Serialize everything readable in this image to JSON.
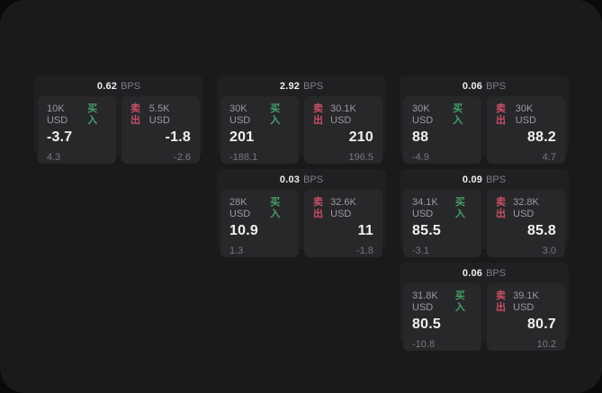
{
  "labels": {
    "bps_unit": "BPS",
    "buy": "买入",
    "sell": "卖出"
  },
  "colors": {
    "page_background": "#0a0a0a",
    "window_background": "#1a1a1c",
    "card_background": "#202023",
    "pane_background": "#28282b",
    "buy_green": "#44a168",
    "sell_red": "#c84f64"
  },
  "cards": [
    {
      "row": 1,
      "col": 1,
      "bps": "0.62",
      "buy": {
        "amount": "10K USD",
        "value": "-3.7",
        "delta": "4.3"
      },
      "sell": {
        "amount": "5.5K USD",
        "value": "-1.8",
        "delta": "-2.6"
      }
    },
    {
      "row": 1,
      "col": 2,
      "bps": "2.92",
      "buy": {
        "amount": "30K USD",
        "value": "201",
        "delta": "-188.1"
      },
      "sell": {
        "amount": "30.1K USD",
        "value": "210",
        "delta": "196.5"
      }
    },
    {
      "row": 1,
      "col": 3,
      "bps": "0.06",
      "buy": {
        "amount": "30K USD",
        "value": "88",
        "delta": "-4.9"
      },
      "sell": {
        "amount": "30K USD",
        "value": "88.2",
        "delta": "4.7"
      }
    },
    {
      "row": 2,
      "col": 2,
      "bps": "0.03",
      "buy": {
        "amount": "28K USD",
        "value": "10.9",
        "delta": "1.3"
      },
      "sell": {
        "amount": "32.6K USD",
        "value": "11",
        "delta": "-1.8"
      }
    },
    {
      "row": 2,
      "col": 3,
      "bps": "0.09",
      "buy": {
        "amount": "34.1K USD",
        "value": "85.5",
        "delta": "-3.1"
      },
      "sell": {
        "amount": "32.8K USD",
        "value": "85.8",
        "delta": "3.0"
      }
    },
    {
      "row": 3,
      "col": 3,
      "bps": "0.06",
      "buy": {
        "amount": "31.8K USD",
        "value": "80.5",
        "delta": "-10.8"
      },
      "sell": {
        "amount": "39.1K USD",
        "value": "80.7",
        "delta": "10.2"
      }
    }
  ]
}
